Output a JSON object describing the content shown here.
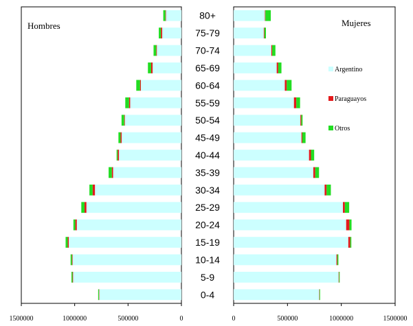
{
  "chart_data": {
    "type": "bar",
    "layout": "population-pyramid",
    "categories": [
      "0-4",
      "5-9",
      "10-14",
      "15-19",
      "20-24",
      "25-29",
      "30-34",
      "35-39",
      "40-44",
      "45-49",
      "50-54",
      "55-59",
      "60-64",
      "65-69",
      "70-74",
      "75-79",
      "80+"
    ],
    "panels": [
      {
        "title": "Hombres",
        "xlim": [
          0,
          1500000
        ],
        "direction": "left",
        "xtick_values": [
          1500000,
          1000000,
          500000,
          0
        ],
        "xtick_labels": [
          "1500000",
          "1000000",
          "500000",
          "0"
        ],
        "series": [
          {
            "name": "Argentino",
            "values": [
              770000,
              1015000,
              1020000,
              1055000,
              980000,
              890000,
              810000,
              640000,
              585000,
              560000,
              530000,
              480000,
              380000,
              270000,
              230000,
              180000,
              145000
            ]
          },
          {
            "name": "Paraguayos",
            "values": [
              3000,
              5000,
              6000,
              10000,
              14000,
              18000,
              22000,
              12000,
              12000,
              10000,
              6000,
              11000,
              8000,
              14000,
              6000,
              12000,
              5000
            ]
          },
          {
            "name": "Otros",
            "values": [
              7000,
              10000,
              12000,
              20000,
              18000,
              30000,
              30000,
              30000,
              10000,
              20000,
              25000,
              35000,
              35000,
              30000,
              25000,
              20000,
              20000
            ]
          }
        ]
      },
      {
        "title": "Mujeres",
        "xlim": [
          0,
          1500000
        ],
        "direction": "right",
        "xtick_values": [
          0,
          500000,
          1000000,
          1500000
        ],
        "xtick_labels": [
          "0",
          "500000",
          "1000000",
          "1500000"
        ],
        "series": [
          {
            "name": "Argentino",
            "values": [
              795000,
              975000,
              955000,
              1065000,
              1045000,
              1015000,
              845000,
              740000,
              700000,
              630000,
              620000,
              560000,
              475000,
              400000,
              350000,
              280000,
              290000
            ]
          },
          {
            "name": "Paraguayos",
            "values": [
              3000,
              4000,
              8000,
              18000,
              30000,
              18000,
              18000,
              18000,
              18000,
              8000,
              8000,
              22000,
              18000,
              14000,
              8000,
              6000,
              5000
            ]
          },
          {
            "name": "Otros",
            "values": [
              5000,
              6000,
              10000,
              10000,
              20000,
              40000,
              40000,
              35000,
              30000,
              30000,
              12000,
              35000,
              45000,
              30000,
              30000,
              14000,
              50000
            ]
          }
        ]
      }
    ],
    "legend": {
      "placement": "right-panel",
      "items": [
        {
          "name": "Argentino",
          "color": "#ccffff"
        },
        {
          "name": "Paraguayos",
          "color": "#e31a1c"
        },
        {
          "name": "Otros",
          "color": "#22dd22"
        }
      ]
    },
    "colors": {
      "Argentino": "#ccffff",
      "Paraguayos": "#e31a1c",
      "Otros": "#22dd22",
      "outline": "#ffffff",
      "axis": "#000000"
    }
  }
}
